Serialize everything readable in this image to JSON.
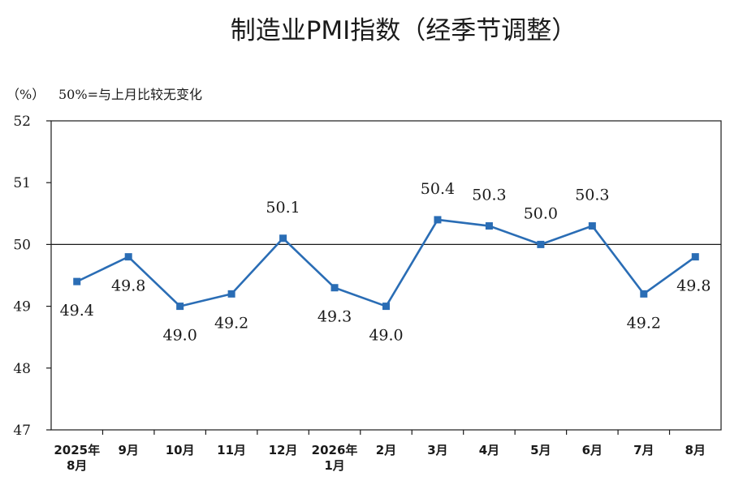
{
  "chart_data": {
    "type": "line",
    "title": "制造业PMI指数（经季节调整）",
    "unit_label": "（%）",
    "note": "50%=与上月比较无变化",
    "categories": [
      "2025年\n8月",
      "9月",
      "10月",
      "11月",
      "12月",
      "2026年\n1月",
      "2月",
      "3月",
      "4月",
      "5月",
      "6月",
      "7月",
      "8月"
    ],
    "series": [
      {
        "values": [
          49.4,
          49.8,
          49.0,
          49.2,
          50.1,
          49.3,
          49.0,
          50.4,
          50.3,
          50.0,
          50.3,
          49.2,
          49.8
        ]
      }
    ],
    "data_labels": [
      "49.4",
      "49.8",
      "49.0",
      "49.2",
      "50.1",
      "49.3",
      "49.0",
      "50.4",
      "50.3",
      "50.0",
      "50.3",
      "49.2",
      "49.8"
    ],
    "yticks": [
      "47",
      "48",
      "49",
      "50",
      "51",
      "52"
    ],
    "ylim": [
      47,
      52
    ],
    "reference_line": 50,
    "grid": false,
    "legend": "none",
    "line_color": "#2a6db5"
  }
}
